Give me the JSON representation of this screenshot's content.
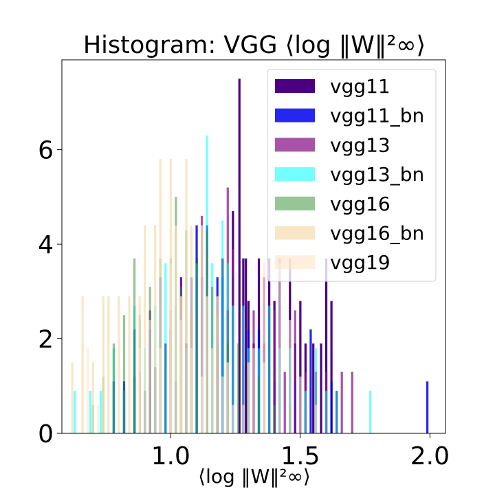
{
  "chart_data": {
    "type": "histogram",
    "title": "Histogram: VGG ⟨log ‖W‖²∞⟩",
    "xlabel": "⟨log ‖W‖²∞⟩",
    "ylabel": "",
    "xlim": [
      0.58,
      2.06
    ],
    "ylim": [
      0,
      7.9
    ],
    "xticks": [
      1.0,
      1.5,
      2.0
    ],
    "xtick_labels": [
      "1.0",
      "1.5",
      "2.0"
    ],
    "yticks": [
      0,
      2,
      4,
      6
    ],
    "ytick_labels": [
      "0",
      "2",
      "4",
      "6"
    ],
    "grid": false,
    "legend": "top-right",
    "series": [
      {
        "name": "vgg11",
        "color": "#4b0082",
        "alpha": 1.0,
        "bin_width": 0.0085,
        "bins": [
          [
            0.82,
            0.9
          ],
          [
            0.86,
            1.2
          ],
          [
            0.9,
            0.9
          ],
          [
            0.94,
            1.4
          ],
          [
            0.98,
            1.9
          ],
          [
            1.02,
            1.1
          ],
          [
            1.06,
            1.9
          ],
          [
            1.1,
            3.7
          ],
          [
            1.14,
            2.6
          ],
          [
            1.18,
            1.9
          ],
          [
            1.2,
            3.7
          ],
          [
            1.22,
            2.6
          ],
          [
            1.24,
            4.7
          ],
          [
            1.265,
            7.5
          ],
          [
            1.28,
            3.7
          ],
          [
            1.29,
            3.7
          ],
          [
            1.3,
            2.8
          ],
          [
            1.32,
            1.9
          ],
          [
            1.34,
            3.7
          ],
          [
            1.36,
            1.9
          ],
          [
            1.38,
            3.7
          ],
          [
            1.4,
            2.8
          ],
          [
            1.42,
            3.7
          ],
          [
            1.46,
            3.7
          ],
          [
            1.48,
            1.9
          ],
          [
            1.5,
            2.8
          ],
          [
            1.52,
            1.9
          ],
          [
            1.55,
            1.9
          ],
          [
            1.58,
            1.9
          ],
          [
            1.6,
            3.7
          ],
          [
            1.62,
            2.8
          ],
          [
            1.64,
            0.9
          ]
        ]
      },
      {
        "name": "vgg11_bn",
        "color": "#0000ee",
        "alpha": 0.85,
        "bin_width": 0.0085,
        "bins": [
          [
            0.78,
            1.1
          ],
          [
            0.82,
            1.1
          ],
          [
            0.86,
            2.2
          ],
          [
            0.92,
            2.2
          ],
          [
            0.96,
            3.3
          ],
          [
            1.0,
            2.2
          ],
          [
            1.04,
            3.3
          ],
          [
            1.08,
            3.3
          ],
          [
            1.1,
            4.4
          ],
          [
            1.12,
            3.3
          ],
          [
            1.14,
            4.4
          ],
          [
            1.18,
            3.3
          ],
          [
            1.2,
            3.3
          ],
          [
            1.24,
            3.3
          ],
          [
            1.3,
            2.2
          ],
          [
            1.34,
            2.2
          ],
          [
            1.4,
            1.1
          ],
          [
            1.48,
            1.1
          ],
          [
            1.54,
            2.2
          ],
          [
            1.62,
            1.1
          ],
          [
            1.99,
            1.1
          ]
        ]
      },
      {
        "name": "vgg13",
        "color": "#8b1a89",
        "alpha": 0.75,
        "bin_width": 0.0085,
        "bins": [
          [
            0.88,
            1.3
          ],
          [
            0.92,
            2.6
          ],
          [
            0.96,
            1.3
          ],
          [
            1.0,
            2.6
          ],
          [
            1.04,
            3.3
          ],
          [
            1.08,
            2.6
          ],
          [
            1.12,
            4.6
          ],
          [
            1.14,
            3.9
          ],
          [
            1.18,
            2.6
          ],
          [
            1.22,
            5.2
          ],
          [
            1.24,
            3.9
          ],
          [
            1.28,
            2.6
          ],
          [
            1.32,
            2.6
          ],
          [
            1.36,
            3.3
          ],
          [
            1.4,
            2.6
          ],
          [
            1.44,
            1.3
          ],
          [
            1.48,
            2.6
          ],
          [
            1.52,
            1.3
          ],
          [
            1.56,
            1.3
          ],
          [
            1.6,
            1.3
          ],
          [
            1.66,
            1.3
          ],
          [
            1.7,
            1.3
          ]
        ]
      },
      {
        "name": "vgg13_bn",
        "color": "#00ffff",
        "alpha": 0.55,
        "bin_width": 0.0085,
        "bins": [
          [
            0.63,
            0.9
          ],
          [
            0.69,
            0.9
          ],
          [
            0.73,
            0.9
          ],
          [
            0.78,
            1.8
          ],
          [
            0.82,
            0.9
          ],
          [
            0.86,
            2.7
          ],
          [
            0.9,
            1.8
          ],
          [
            0.94,
            2.7
          ],
          [
            0.98,
            3.6
          ],
          [
            1.02,
            2.7
          ],
          [
            1.06,
            1.8
          ],
          [
            1.1,
            3.6
          ],
          [
            1.14,
            6.3
          ],
          [
            1.16,
            3.6
          ],
          [
            1.2,
            4.5
          ],
          [
            1.22,
            3.6
          ],
          [
            1.24,
            2.7
          ],
          [
            1.28,
            2.7
          ],
          [
            1.3,
            1.8
          ],
          [
            1.34,
            1.8
          ],
          [
            1.38,
            2.7
          ],
          [
            1.42,
            1.8
          ],
          [
            1.46,
            1.8
          ],
          [
            1.52,
            0.9
          ],
          [
            1.56,
            1.8
          ],
          [
            1.6,
            0.9
          ],
          [
            1.64,
            0.9
          ],
          [
            1.77,
            0.9
          ]
        ]
      },
      {
        "name": "vgg16",
        "color": "#2e8b2e",
        "alpha": 0.5,
        "bin_width": 0.0085,
        "bins": [
          [
            0.7,
            0.6
          ],
          [
            0.74,
            1.2
          ],
          [
            0.78,
            1.9
          ],
          [
            0.82,
            2.5
          ],
          [
            0.86,
            3.7
          ],
          [
            0.88,
            2.5
          ],
          [
            0.92,
            3.1
          ],
          [
            0.96,
            3.7
          ],
          [
            1.0,
            3.7
          ],
          [
            1.02,
            5.0
          ],
          [
            1.04,
            3.1
          ],
          [
            1.06,
            4.3
          ],
          [
            1.08,
            2.5
          ],
          [
            1.1,
            3.7
          ],
          [
            1.14,
            4.3
          ],
          [
            1.16,
            3.1
          ],
          [
            1.18,
            2.5
          ],
          [
            1.22,
            1.9
          ],
          [
            1.26,
            1.9
          ],
          [
            1.3,
            1.2
          ],
          [
            1.34,
            1.2
          ],
          [
            1.4,
            0.6
          ],
          [
            1.46,
            0.6
          ]
        ]
      },
      {
        "name": "vgg16_bn",
        "color": "#f5deb3",
        "alpha": 0.75,
        "bin_width": 0.0085,
        "bins": [
          [
            0.62,
            1.5
          ],
          [
            0.66,
            2.9
          ],
          [
            0.7,
            1.5
          ],
          [
            0.74,
            2.9
          ],
          [
            0.76,
            2.9
          ],
          [
            0.8,
            2.9
          ],
          [
            0.84,
            2.9
          ],
          [
            0.88,
            2.9
          ],
          [
            0.9,
            4.4
          ],
          [
            0.94,
            4.4
          ],
          [
            0.96,
            5.8
          ],
          [
            1.0,
            5.8
          ],
          [
            1.02,
            4.4
          ],
          [
            1.04,
            2.9
          ],
          [
            1.06,
            5.8
          ],
          [
            1.08,
            4.4
          ],
          [
            1.12,
            4.4
          ],
          [
            1.14,
            2.9
          ],
          [
            1.18,
            2.9
          ],
          [
            1.22,
            1.5
          ],
          [
            1.3,
            1.5
          ],
          [
            1.36,
            1.5
          ]
        ]
      },
      {
        "name": "vgg19",
        "color": "#ffe4c4",
        "alpha": 0.6,
        "bin_width": 0.0085,
        "bins": [
          [
            0.68,
            1.8
          ],
          [
            0.72,
            0.6
          ],
          [
            0.76,
            1.2
          ],
          [
            0.8,
            0.6
          ],
          [
            0.84,
            1.2
          ],
          [
            0.88,
            1.8
          ],
          [
            0.92,
            2.4
          ],
          [
            0.96,
            1.8
          ],
          [
            1.0,
            3.6
          ],
          [
            1.04,
            2.4
          ],
          [
            1.08,
            1.8
          ],
          [
            1.12,
            1.2
          ],
          [
            1.16,
            1.8
          ],
          [
            1.2,
            1.2
          ],
          [
            1.24,
            0.6
          ],
          [
            1.28,
            0.6
          ],
          [
            1.32,
            1.8
          ],
          [
            1.36,
            3.6
          ],
          [
            1.42,
            3.6
          ],
          [
            1.46,
            2.4
          ],
          [
            1.5,
            1.2
          ],
          [
            1.56,
            0.6
          ]
        ]
      }
    ]
  }
}
